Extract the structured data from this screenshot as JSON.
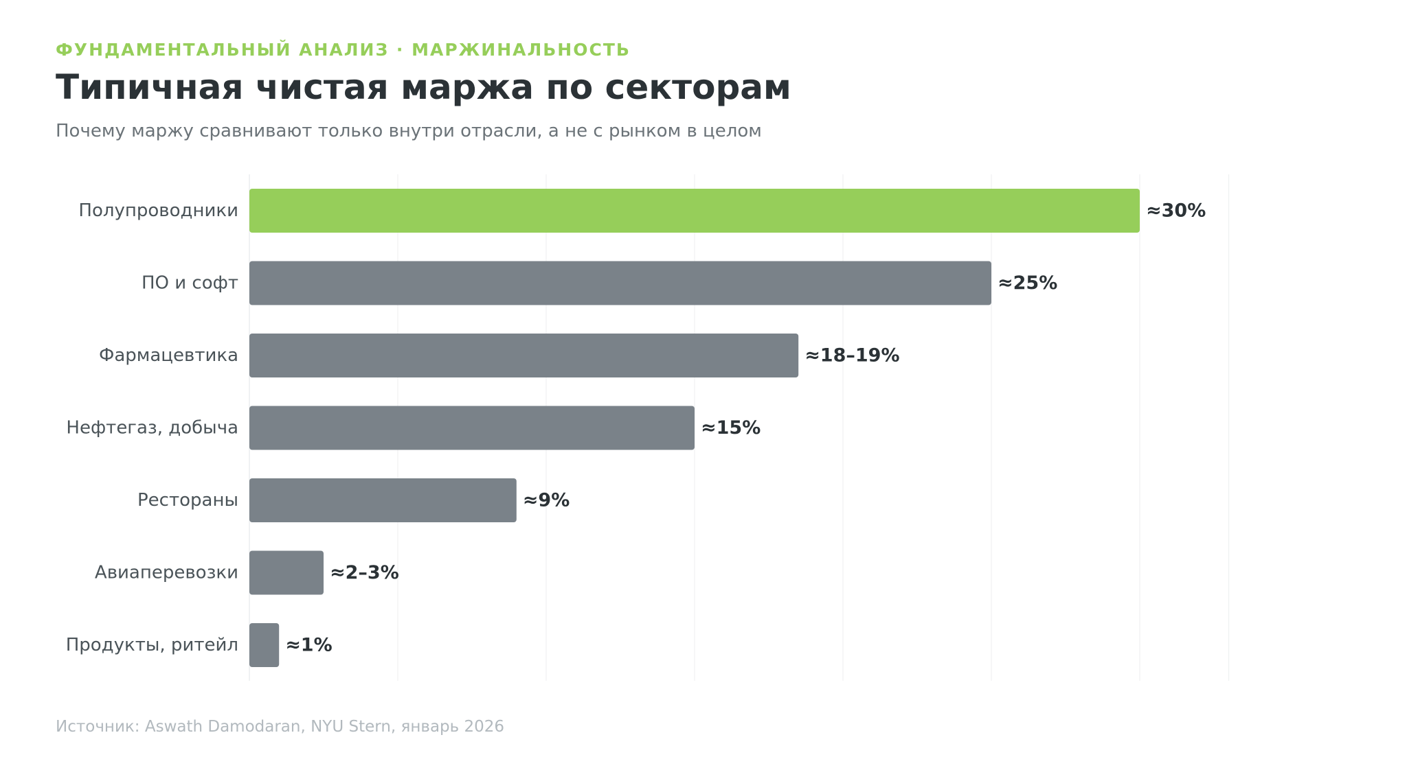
{
  "header": {
    "kicker": "ФУНДАМЕНТАЛЬНЫЙ АНАЛИЗ · МАРЖИНАЛЬНОСТЬ",
    "title": "Типичная чистая маржа по секторам",
    "subtitle": "Почему маржу сравнивают только внутри отрасли, а не с рынком в целом"
  },
  "footer": {
    "source": "Источник: Aswath Damodaran, NYU Stern, январь 2026"
  },
  "colors": {
    "accent": "#96ce5a",
    "bar": "#7a8289",
    "grid": "#eceeef",
    "kicker": "#96ce5a"
  },
  "chart_data": {
    "type": "bar",
    "orientation": "horizontal",
    "categories": [
      "Полупроводники",
      "ПО и софт",
      "Фармацевтика",
      "Нефтегаз, добыча",
      "Рестораны",
      "Авиаперевозки",
      "Продукты, ритейл"
    ],
    "values": [
      30,
      25,
      18.5,
      15,
      9,
      2.5,
      1
    ],
    "value_labels": [
      "≈30%",
      "≈25%",
      "≈18–19%",
      "≈15%",
      "≈9%",
      "≈2–3%",
      "≈1%"
    ],
    "highlight_index": 0,
    "xlim": [
      0,
      34
    ],
    "grid": true,
    "unit": "%"
  }
}
